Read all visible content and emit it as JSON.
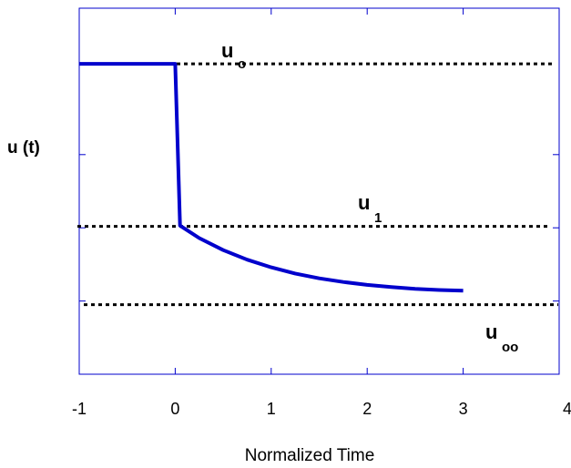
{
  "chart_data": {
    "type": "line",
    "xlabel": "Normalized Time",
    "ylabel": "u (t)",
    "xlim": [
      -1,
      4
    ],
    "ylim": [
      0,
      1
    ],
    "x_ticks": [
      "-1",
      "0",
      "1",
      "2",
      "3",
      "4"
    ],
    "y_tick_values": [
      0.2,
      0.4,
      0.6
    ],
    "grid": false,
    "series": [
      {
        "color": "#0000cc",
        "points": [
          [
            -1,
            0.848
          ],
          [
            0,
            0.848
          ],
          [
            0.05,
            0.406
          ],
          [
            0.25,
            0.372
          ],
          [
            0.5,
            0.339
          ],
          [
            0.75,
            0.313
          ],
          [
            1.0,
            0.292
          ],
          [
            1.25,
            0.275
          ],
          [
            1.5,
            0.262
          ],
          [
            1.75,
            0.252
          ],
          [
            2.0,
            0.244
          ],
          [
            2.25,
            0.238
          ],
          [
            2.5,
            0.233
          ],
          [
            2.75,
            0.23
          ],
          [
            3.0,
            0.228
          ]
        ]
      }
    ],
    "reference_lines": [
      {
        "y": 0.848,
        "main": "u",
        "sub": "o",
        "style": "dotted"
      },
      {
        "y": 0.404,
        "main": "u",
        "sub": "1",
        "style": "dotted"
      },
      {
        "y": 0.19,
        "main": "u",
        "sub": "oo",
        "style": "dotted"
      }
    ],
    "colors": {
      "series": "#0000cc",
      "frame": "#0000cc",
      "reference": "#000000"
    }
  }
}
